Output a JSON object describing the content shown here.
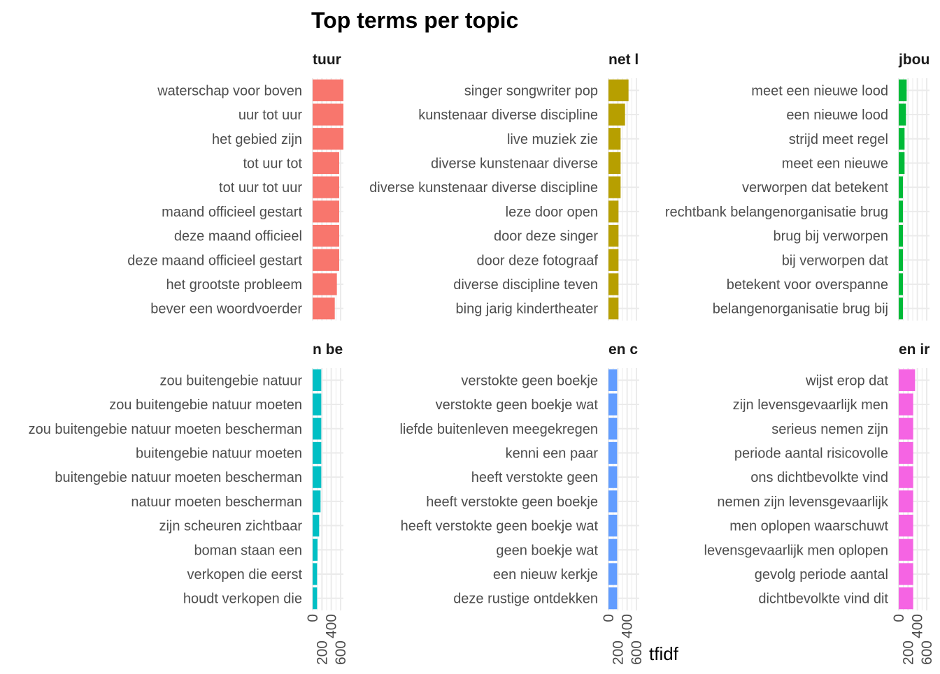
{
  "chart_data": {
    "type": "bar",
    "orientation": "horizontal",
    "title": "Top terms per topic",
    "xlabel": "tfidf",
    "ylabel": "",
    "xlim": [
      0,
      660
    ],
    "x_ticks": [
      "0",
      "200",
      "400",
      "600"
    ],
    "grid": true,
    "legend": "none",
    "facets": [
      {
        "strip": "tuur",
        "color": "#F8766D",
        "categories": [
          "waterschap voor boven",
          "uur tot uur",
          "het gebied zijn",
          "tot uur tot",
          "tot uur tot uur",
          "maand officieel gestart",
          "deze maand officieel",
          "deze maand officieel gestart",
          "het grootste probleem",
          "bever een woordvoerder"
        ],
        "values": [
          660,
          660,
          660,
          570,
          570,
          570,
          570,
          570,
          520,
          475
        ]
      },
      {
        "strip": "net l",
        "color": "#B79F00",
        "categories": [
          "singer songwriter pop",
          "kunstenaar diverse discipline",
          "live muziek zie",
          "diverse kunstenaar diverse",
          "diverse kunstenaar diverse discipline",
          "leze door open",
          "door deze singer",
          "door deze fotograaf",
          "diverse discipline teven",
          "bing jarig kindertheater"
        ],
        "values": [
          430,
          355,
          260,
          260,
          260,
          215,
          215,
          215,
          215,
          215
        ]
      },
      {
        "strip": "jbou",
        "color": "#00BA38",
        "categories": [
          "meet een nieuwe lood",
          "een nieuwe lood",
          "strijd meet regel",
          "meet een nieuwe",
          "verworpen dat betekent",
          "rechtbank belangenorganisatie brug",
          "brug bij verworpen",
          "bij verworpen dat",
          "betekent voor overspanne",
          "belangenorganisatie brug bij"
        ],
        "values": [
          170,
          155,
          125,
          125,
          90,
          90,
          90,
          90,
          90,
          90
        ]
      },
      {
        "strip": "n be",
        "color": "#00BFC4",
        "categories": [
          "zou buitengebie natuur",
          "zou buitengebie natuur moeten",
          "zou buitengebie natuur moeten bescherman",
          "buitengebie natuur moeten",
          "buitengebie natuur moeten bescherman",
          "natuur moeten bescherman",
          "zijn scheuren zichtbaar",
          "boman staan een",
          "verkopen die eerst",
          "houdt verkopen die"
        ],
        "values": [
          185,
          185,
          185,
          185,
          185,
          170,
          140,
          105,
          95,
          95
        ]
      },
      {
        "strip": "en c",
        "color": "#619CFF",
        "categories": [
          "verstokte geen boekje",
          "verstokte geen boekje wat",
          "liefde buitenleven meegekregen",
          "kenni een paar",
          "heeft verstokte geen",
          "heeft verstokte geen boekje",
          "heeft verstokte geen boekje wat",
          "geen boekje wat",
          "een nieuw kerkje",
          "deze rustige ontdekken"
        ],
        "values": [
          185,
          185,
          185,
          185,
          185,
          185,
          185,
          185,
          185,
          185
        ]
      },
      {
        "strip": "en ir",
        "color": "#F564E3",
        "categories": [
          "wijst erop dat",
          "zijn levensgevaarlijk men",
          "serieus nemen zijn",
          "periode aantal risicovolle",
          "ons dichtbevolkte vind",
          "nemen zijn levensgevaarlijk",
          "men oplopen waarschuwt",
          "levensgevaarlijk men oplopen",
          "gevolg periode aantal",
          "dichtbevolkte vind dit"
        ],
        "values": [
          350,
          310,
          310,
          310,
          310,
          310,
          310,
          310,
          310,
          310
        ]
      }
    ]
  }
}
